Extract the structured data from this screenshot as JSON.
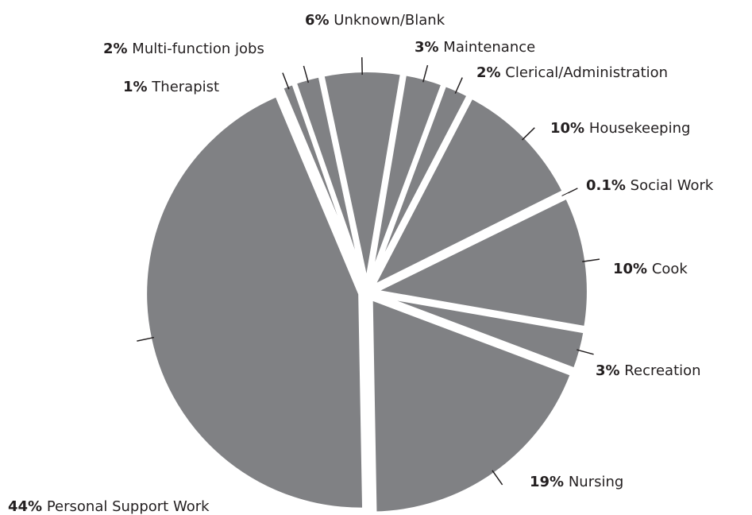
{
  "chart_data": {
    "type": "pie",
    "categories": [
      "Unknown/Blank",
      "Maintenance",
      "Clerical/Administration",
      "Housekeeping",
      "Social Work",
      "Cook",
      "Recreation",
      "Nursing",
      "Personal Support Work",
      "Therapist",
      "Multi-function jobs"
    ],
    "values": [
      6,
      3,
      2,
      10,
      0.1,
      10,
      3,
      19,
      44,
      1,
      2
    ],
    "value_labels": [
      "6%",
      "3%",
      "2%",
      "10%",
      "0.1%",
      "10%",
      "3%",
      "19%",
      "44%",
      "1%",
      "2%"
    ],
    "color": "#808184"
  }
}
